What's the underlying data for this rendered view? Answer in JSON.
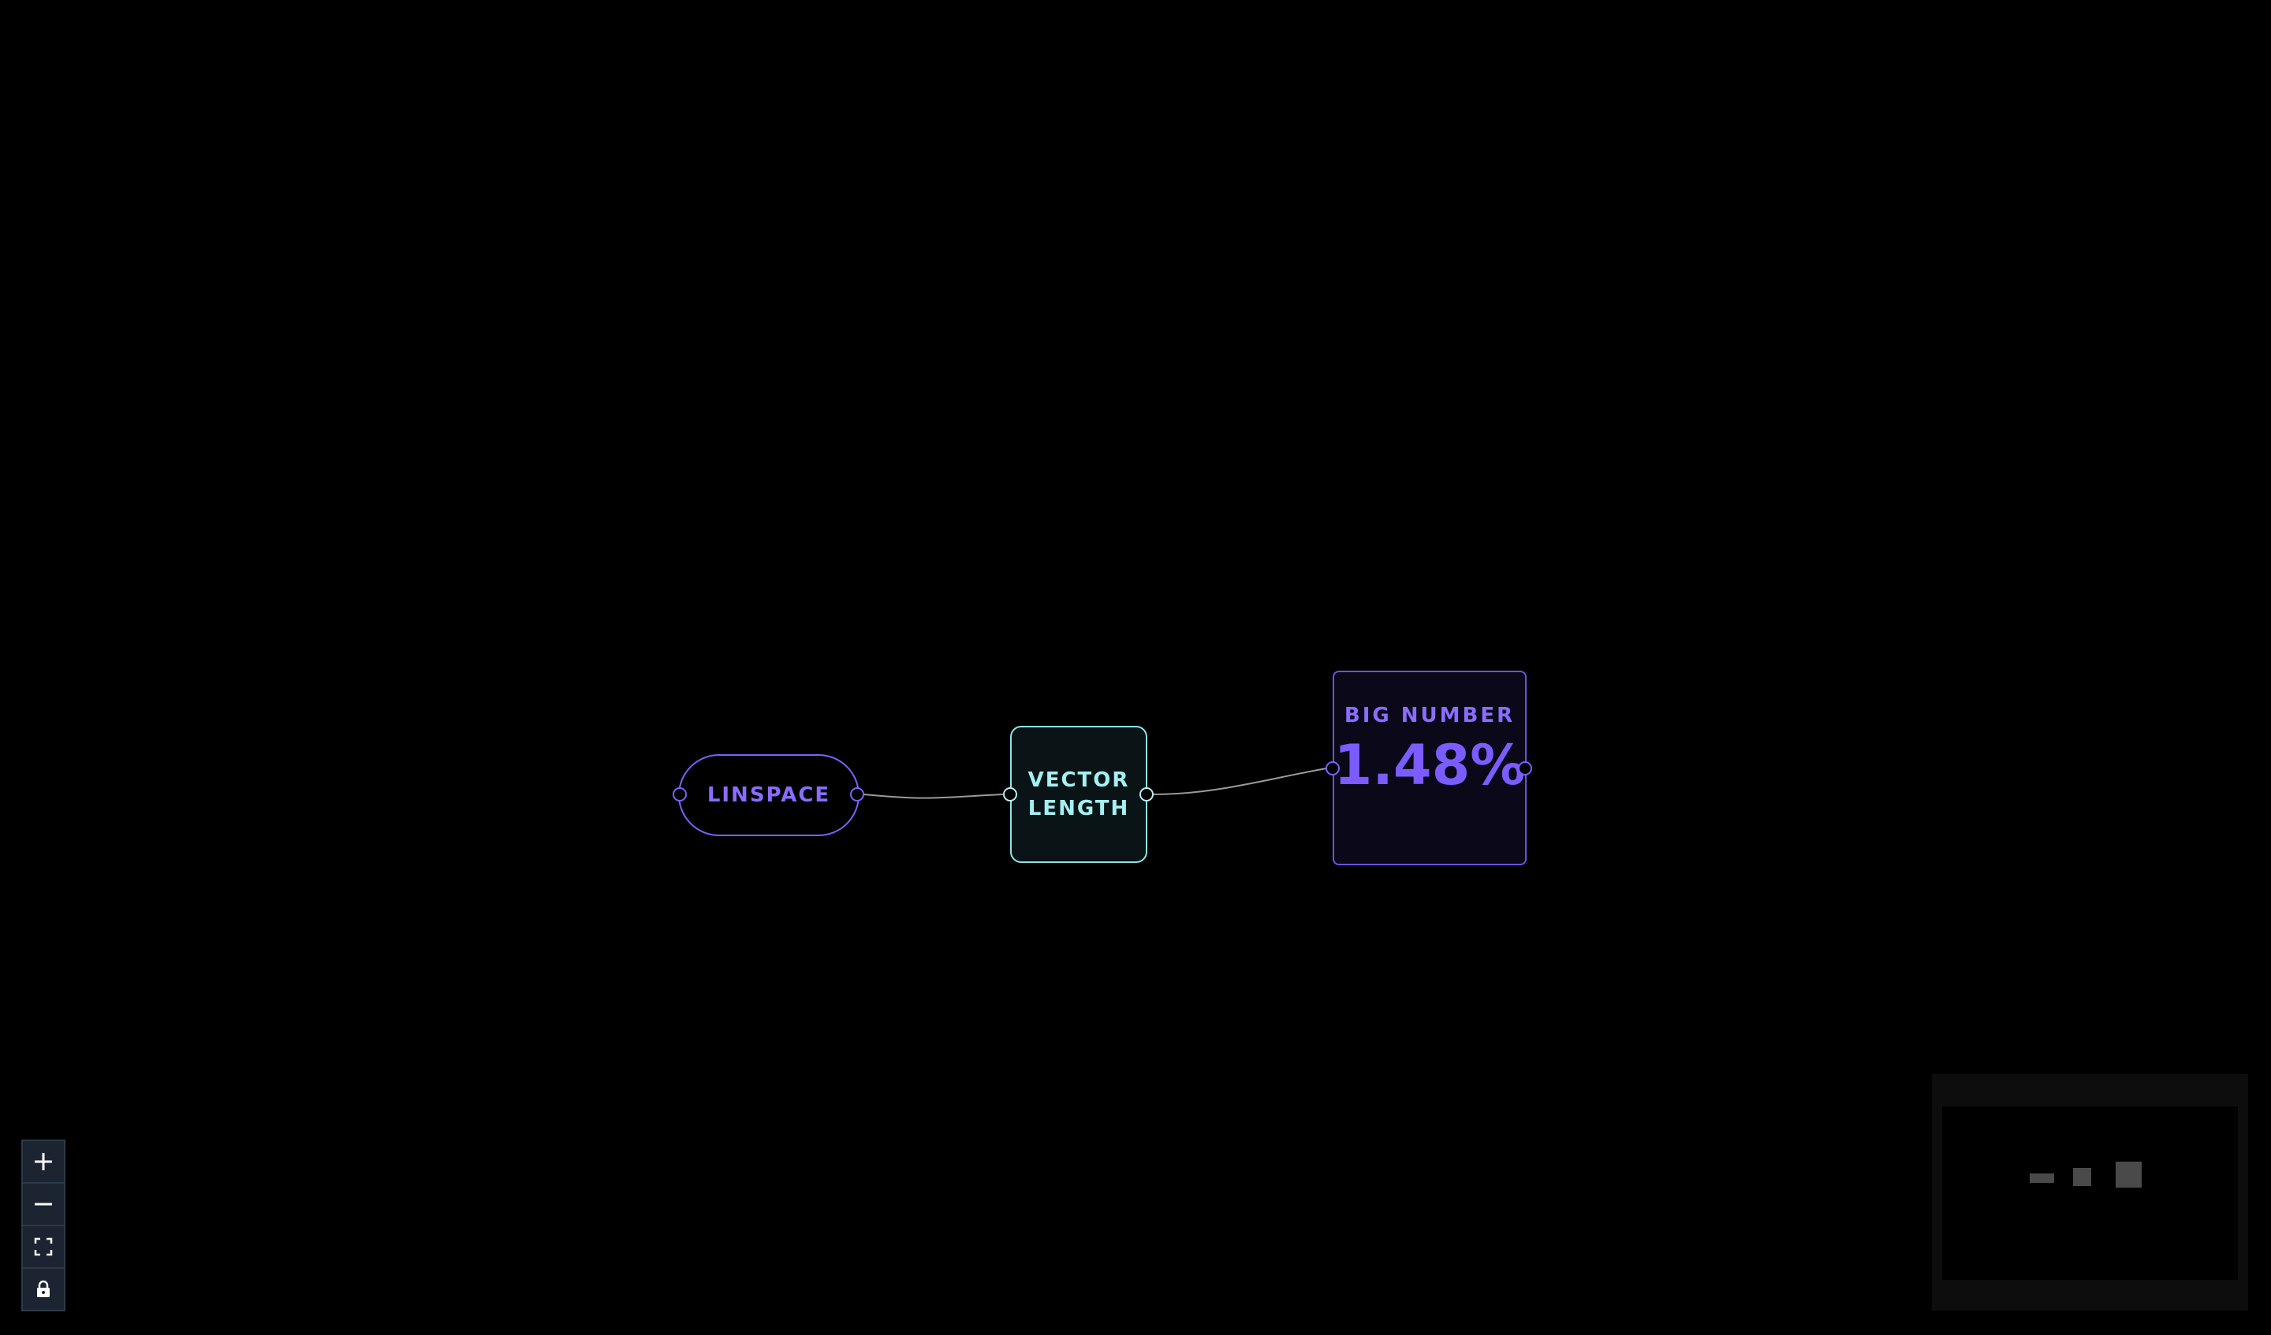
{
  "flow": {
    "nodes": {
      "linspace": {
        "label": "LINSPACE"
      },
      "vector_length": {
        "label_line1": "VECTOR",
        "label_line2": "LENGTH"
      },
      "big_number": {
        "title": "BIG NUMBER",
        "value": "1.48%"
      }
    },
    "edges": [
      {
        "from": "linspace",
        "to": "vector_length"
      },
      {
        "from": "vector_length",
        "to": "big_number"
      }
    ]
  },
  "controls": {
    "zoom_in_icon": "plus-icon",
    "zoom_out_icon": "minus-icon",
    "fit_view_icon": "fit-view-icon",
    "lock_icon": "lock-icon"
  },
  "colors": {
    "background": "#000000",
    "accent_purple": "#7b61ff",
    "accent_cyan": "#8fe3e6",
    "edge": "#9a9a9a",
    "minimap_node": "#4a4a4a"
  }
}
